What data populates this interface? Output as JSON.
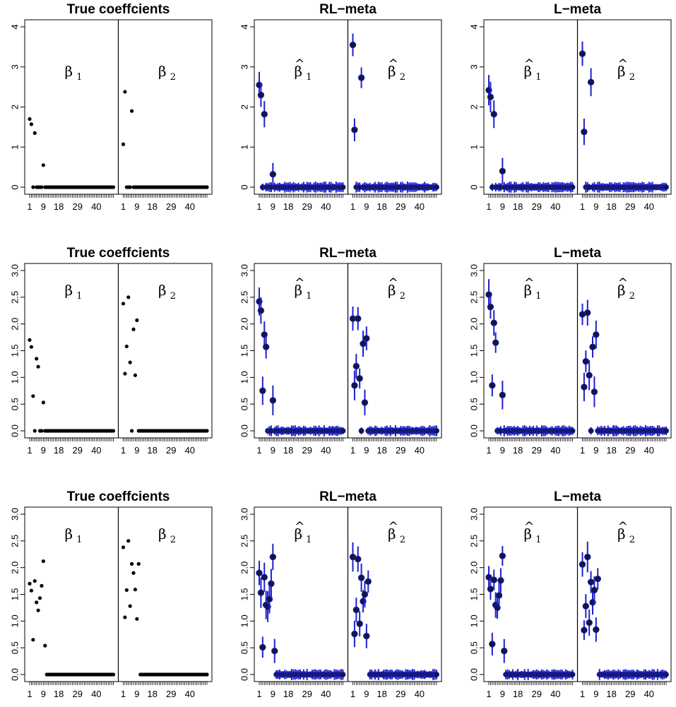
{
  "figure": {
    "rows": 3,
    "cols": 3
  },
  "chart_data": [
    {
      "type": "scatter",
      "title": "True coeffcients",
      "estimated": false,
      "ylim": [
        0,
        4
      ],
      "yticks": [
        0,
        1,
        2,
        3,
        4
      ],
      "xticklabels": [
        "1",
        "9",
        "18",
        "29",
        "40"
      ],
      "groups": [
        {
          "label": "β",
          "sub": "1",
          "hat": false,
          "values": [
            1.7,
            1.57,
            0,
            1.35,
            0,
            0,
            0,
            0,
            0.55
          ]
        },
        {
          "label": "β",
          "sub": "2",
          "hat": false,
          "values": [
            1.07,
            2.38,
            0,
            0,
            0,
            1.9
          ]
        }
      ]
    },
    {
      "type": "scatter",
      "title": "RL−meta",
      "estimated": true,
      "ylim": [
        0,
        4
      ],
      "yticks": [
        0,
        1,
        2,
        3,
        4
      ],
      "xticklabels": [
        "1",
        "9",
        "18",
        "29",
        "40"
      ],
      "groups": [
        {
          "label": "β",
          "sub": "1",
          "hat": true,
          "values": [
            2.55,
            2.3,
            0,
            1.82,
            0,
            0,
            0,
            0,
            0.32
          ]
        },
        {
          "label": "β",
          "sub": "2",
          "hat": true,
          "values": [
            3.55,
            1.43,
            0,
            0,
            0,
            2.73
          ]
        }
      ]
    },
    {
      "type": "scatter",
      "title": "L−meta",
      "estimated": true,
      "ylim": [
        0,
        4
      ],
      "yticks": [
        0,
        1,
        2,
        3,
        4
      ],
      "xticklabels": [
        "1",
        "9",
        "18",
        "29",
        "40"
      ],
      "groups": [
        {
          "label": "β",
          "sub": "1",
          "hat": true,
          "values": [
            2.42,
            2.25,
            0,
            1.82,
            0,
            0,
            0,
            0,
            0.4
          ]
        },
        {
          "label": "β",
          "sub": "2",
          "hat": true,
          "values": [
            3.33,
            1.38,
            0,
            0,
            0,
            2.62
          ]
        }
      ]
    },
    {
      "type": "scatter",
      "title": "True coeffcients",
      "estimated": false,
      "ylim": [
        0,
        3
      ],
      "yticks": [
        "0.0",
        "0.5",
        "1.0",
        "1.5",
        "2.0",
        "2.5",
        "3.0"
      ],
      "xticklabels": [
        "1",
        "9",
        "18",
        "29",
        "40"
      ],
      "groups": [
        {
          "label": "β",
          "sub": "1",
          "hat": false,
          "values": [
            1.7,
            1.57,
            0.65,
            0,
            1.35,
            1.2,
            0,
            0,
            0.53
          ]
        },
        {
          "label": "β",
          "sub": "2",
          "hat": false,
          "values": [
            2.38,
            1.07,
            1.58,
            2.5,
            1.28,
            0,
            1.9,
            1.04,
            2.07
          ]
        }
      ]
    },
    {
      "type": "scatter",
      "title": "RL−meta",
      "estimated": true,
      "ylim": [
        0,
        3
      ],
      "yticks": [
        "0.0",
        "0.5",
        "1.0",
        "1.5",
        "2.0",
        "2.5",
        "3.0"
      ],
      "xticklabels": [
        "1",
        "9",
        "18",
        "29",
        "40"
      ],
      "groups": [
        {
          "label": "β",
          "sub": "1",
          "hat": true,
          "values": [
            2.42,
            2.25,
            0.75,
            1.8,
            1.57,
            0,
            0,
            0,
            0.57
          ]
        },
        {
          "label": "β",
          "sub": "2",
          "hat": true,
          "values": [
            2.1,
            0.85,
            1.21,
            2.1,
            0.98,
            0,
            1.63,
            0.53,
            1.73
          ]
        }
      ]
    },
    {
      "type": "scatter",
      "title": "L−meta",
      "estimated": true,
      "ylim": [
        0,
        3
      ],
      "yticks": [
        "0.0",
        "0.5",
        "1.0",
        "1.5",
        "2.0",
        "2.5",
        "3.0"
      ],
      "xticklabels": [
        "1",
        "9",
        "18",
        "29",
        "40"
      ],
      "groups": [
        {
          "label": "β",
          "sub": "1",
          "hat": true,
          "values": [
            2.55,
            2.32,
            0.85,
            2.02,
            1.65,
            0,
            0,
            0,
            0.67
          ]
        },
        {
          "label": "β",
          "sub": "2",
          "hat": true,
          "values": [
            2.18,
            0.82,
            1.3,
            2.21,
            1.04,
            0,
            1.57,
            0.73,
            1.8
          ]
        }
      ]
    },
    {
      "type": "scatter",
      "title": "True coeffcients",
      "estimated": false,
      "ylim": [
        0,
        3
      ],
      "yticks": [
        "0.0",
        "0.5",
        "1.0",
        "1.5",
        "2.0",
        "2.5",
        "3.0"
      ],
      "xticklabels": [
        "1",
        "9",
        "18",
        "29",
        "40"
      ],
      "groups": [
        {
          "label": "β",
          "sub": "1",
          "hat": false,
          "values": [
            1.7,
            1.57,
            0.65,
            1.75,
            1.35,
            1.2,
            1.43,
            1.66,
            2.12,
            0.54
          ]
        },
        {
          "label": "β",
          "sub": "2",
          "hat": false,
          "values": [
            2.38,
            1.07,
            1.58,
            2.5,
            1.28,
            2.07,
            1.9,
            1.59,
            1.04,
            2.07
          ]
        }
      ]
    },
    {
      "type": "scatter",
      "title": "RL−meta",
      "estimated": true,
      "ylim": [
        0,
        3
      ],
      "yticks": [
        "0.0",
        "0.5",
        "1.0",
        "1.5",
        "2.0",
        "2.5",
        "3.0"
      ],
      "xticklabels": [
        "1",
        "9",
        "18",
        "29",
        "40"
      ],
      "groups": [
        {
          "label": "β",
          "sub": "1",
          "hat": true,
          "values": [
            1.9,
            1.53,
            0.51,
            1.82,
            1.3,
            1.27,
            1.41,
            1.7,
            2.2,
            0.44
          ]
        },
        {
          "label": "β",
          "sub": "2",
          "hat": true,
          "values": [
            2.2,
            0.76,
            1.21,
            2.16,
            0.95,
            1.81,
            1.37,
            1.5,
            0.72,
            1.74
          ]
        }
      ]
    },
    {
      "type": "scatter",
      "title": "L−meta",
      "estimated": true,
      "ylim": [
        0,
        3
      ],
      "yticks": [
        "0.0",
        "0.5",
        "1.0",
        "1.5",
        "2.0",
        "2.5",
        "3.0"
      ],
      "xticklabels": [
        "1",
        "9",
        "18",
        "29",
        "40"
      ],
      "groups": [
        {
          "label": "β",
          "sub": "1",
          "hat": true,
          "values": [
            1.82,
            1.6,
            0.57,
            1.77,
            1.3,
            1.25,
            1.48,
            1.76,
            2.22,
            0.44
          ]
        },
        {
          "label": "β",
          "sub": "2",
          "hat": true,
          "values": [
            2.06,
            0.83,
            1.28,
            2.2,
            0.97,
            1.73,
            1.35,
            1.58,
            0.84,
            1.79
          ]
        }
      ]
    }
  ]
}
